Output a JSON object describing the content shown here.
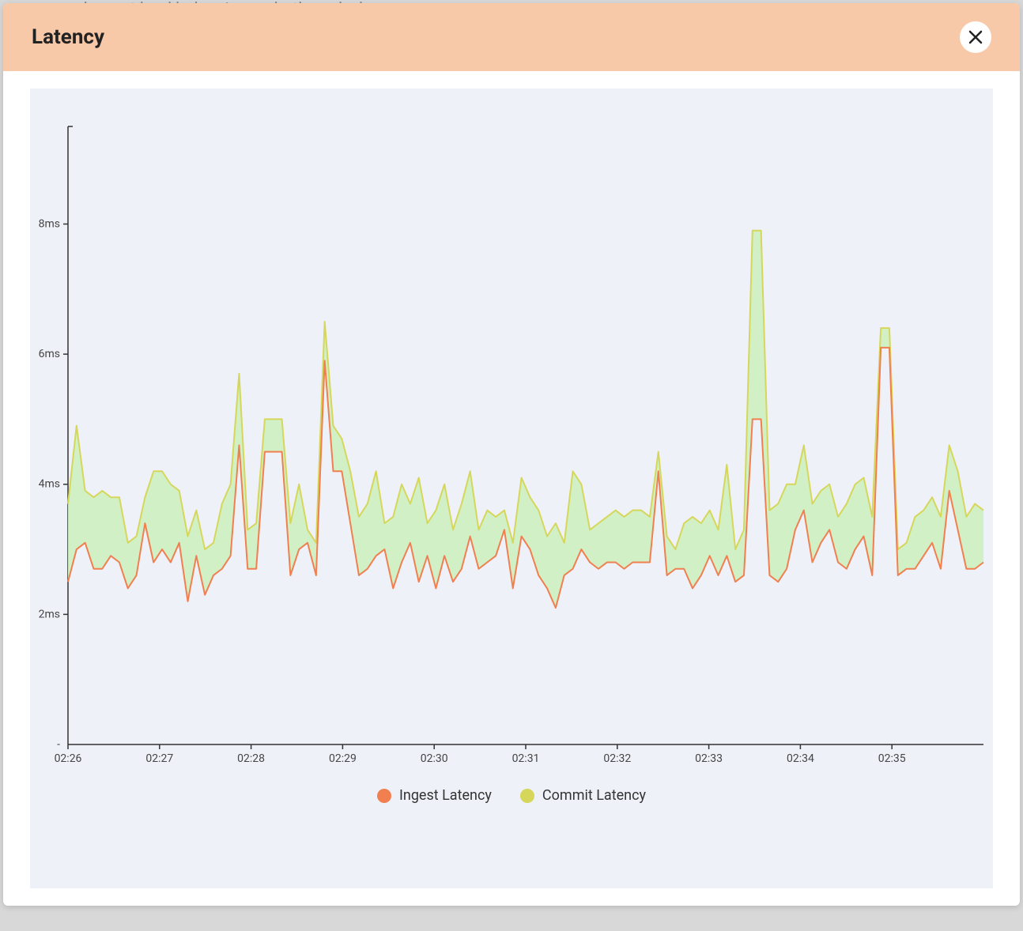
{
  "bg_text": "er you only want load balancing, or both, and when",
  "modal": {
    "title": "Latency",
    "close_label": "Close"
  },
  "chart": {
    "type": "area-line",
    "background_color": "#eef2f8",
    "plot_background": "#eef2f8",
    "area_fill_color": "#cdf0c0",
    "area_fill_opacity": 0.9,
    "ingest_color": "#f17f4f",
    "commit_color": "#d6d75a",
    "line_width": 2,
    "y_axis": {
      "min": 0,
      "max": 9.5,
      "ticks": [
        2,
        4,
        6,
        8
      ],
      "tick_labels": [
        "2ms",
        "4ms",
        "6ms",
        "8ms"
      ],
      "axis_color": "#333"
    },
    "x_axis": {
      "tick_labels": [
        "02:26",
        "02:27",
        "02:28",
        "02:29",
        "02:30",
        "02:31",
        "02:32",
        "02:33",
        "02:34",
        "02:35"
      ],
      "tick_positions": [
        0,
        0.1,
        0.2,
        0.3,
        0.4,
        0.5,
        0.6,
        0.7,
        0.8,
        0.9
      ]
    },
    "legend": [
      {
        "label": "Ingest Latency",
        "color": "#f17f4f"
      },
      {
        "label": "Commit Latency",
        "color": "#d6d75a"
      }
    ],
    "series": {
      "commit": [
        3.7,
        4.9,
        3.9,
        3.8,
        3.9,
        3.8,
        3.8,
        3.1,
        3.2,
        3.8,
        4.2,
        4.2,
        4.0,
        3.9,
        3.2,
        3.6,
        3.0,
        3.1,
        3.7,
        4.0,
        5.7,
        3.3,
        3.4,
        5.0,
        5.0,
        5.0,
        3.4,
        4.0,
        3.3,
        3.1,
        6.5,
        4.9,
        4.7,
        4.2,
        3.5,
        3.7,
        4.2,
        3.4,
        3.5,
        4.0,
        3.7,
        4.1,
        3.4,
        3.6,
        4.0,
        3.3,
        3.7,
        4.2,
        3.3,
        3.6,
        3.5,
        3.6,
        3.1,
        4.1,
        3.8,
        3.6,
        3.2,
        3.4,
        3.1,
        4.2,
        4.0,
        3.3,
        3.4,
        3.5,
        3.6,
        3.5,
        3.6,
        3.6,
        3.5,
        4.5,
        3.2,
        3.0,
        3.4,
        3.5,
        3.4,
        3.6,
        3.3,
        4.3,
        3.0,
        3.3,
        7.9,
        7.9,
        3.6,
        3.7,
        4.0,
        4.0,
        4.6,
        3.7,
        3.9,
        4.0,
        3.5,
        3.7,
        4.0,
        4.1,
        3.5,
        6.4,
        6.4,
        3.0,
        3.1,
        3.5,
        3.6,
        3.8,
        3.5,
        4.6,
        4.2,
        3.5,
        3.7,
        3.6
      ],
      "ingest": [
        2.5,
        3.0,
        3.1,
        2.7,
        2.7,
        2.9,
        2.8,
        2.4,
        2.6,
        3.4,
        2.8,
        3.0,
        2.8,
        3.1,
        2.2,
        2.9,
        2.3,
        2.6,
        2.7,
        2.9,
        4.6,
        2.7,
        2.7,
        4.5,
        4.5,
        4.5,
        2.6,
        3.0,
        3.1,
        2.6,
        5.9,
        4.2,
        4.2,
        3.4,
        2.6,
        2.7,
        2.9,
        3.0,
        2.4,
        2.8,
        3.1,
        2.5,
        2.9,
        2.4,
        2.9,
        2.5,
        2.7,
        3.2,
        2.7,
        2.8,
        2.9,
        3.3,
        2.4,
        3.2,
        3.0,
        2.6,
        2.4,
        2.1,
        2.6,
        2.7,
        3.0,
        2.8,
        2.7,
        2.8,
        2.8,
        2.7,
        2.8,
        2.8,
        2.8,
        4.2,
        2.6,
        2.7,
        2.7,
        2.4,
        2.6,
        2.9,
        2.6,
        2.9,
        2.5,
        2.6,
        5.0,
        5.0,
        2.6,
        2.5,
        2.7,
        3.3,
        3.6,
        2.8,
        3.1,
        3.3,
        2.8,
        2.7,
        3.0,
        3.2,
        2.6,
        6.1,
        6.1,
        2.6,
        2.7,
        2.7,
        2.9,
        3.1,
        2.7,
        3.9,
        3.3,
        2.7,
        2.7,
        2.8
      ]
    }
  }
}
